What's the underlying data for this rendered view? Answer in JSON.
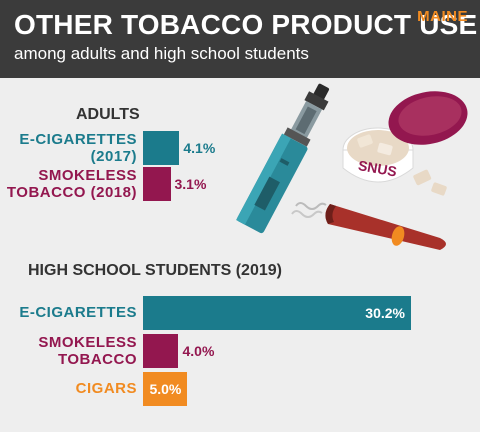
{
  "header": {
    "title": "OTHER TOBACCO PRODUCT USE",
    "subtitle": "among adults and high school students",
    "state": "MAINE"
  },
  "colors": {
    "header_bg": "#3b3b3b",
    "teal": "#1b7b8c",
    "maroon": "#93174f",
    "orange": "#f18b21",
    "background": "#eeeeee"
  },
  "illustration": {
    "icons": [
      "e-cigarette-icon",
      "snus-tin-icon",
      "cigar-icon"
    ],
    "snus_label": "SNUS"
  },
  "chart_data": [
    {
      "type": "bar",
      "title": "ADULTS",
      "categories": [
        "E-CIGARETTES\n(2017)",
        "SMOKELESS\nTOBACCO (2018)"
      ],
      "values": [
        4.1,
        3.1
      ],
      "value_labels": [
        "4.1%",
        "3.1%"
      ],
      "colors": [
        "#1b7b8c",
        "#93174f"
      ],
      "unit": "%"
    },
    {
      "type": "bar",
      "title": "HIGH SCHOOL STUDENTS (2019)",
      "categories": [
        "E-CIGARETTES",
        "SMOKELESS\nTOBACCO",
        "CIGARS"
      ],
      "values": [
        30.2,
        4.0,
        5.0
      ],
      "value_labels": [
        "30.2%",
        "4.0%",
        "5.0%"
      ],
      "colors": [
        "#1b7b8c",
        "#93174f",
        "#f18b21"
      ],
      "unit": "%"
    }
  ]
}
